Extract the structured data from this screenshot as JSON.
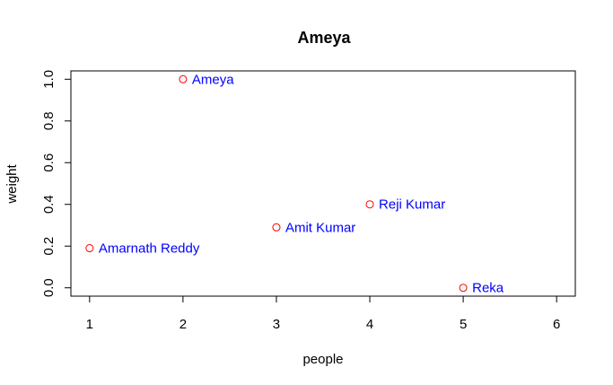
{
  "chart_data": {
    "type": "scatter",
    "title": "Ameya",
    "xlabel": "people",
    "ylabel": "weight",
    "xlim": [
      0.8,
      6.2
    ],
    "ylim": [
      -0.04,
      1.04
    ],
    "x_ticks": [
      1,
      2,
      3,
      4,
      5,
      6
    ],
    "y_ticks": [
      0.0,
      0.2,
      0.4,
      0.6,
      0.8,
      1.0
    ],
    "x_tick_labels": [
      "1",
      "2",
      "3",
      "4",
      "5",
      "6"
    ],
    "y_tick_labels": [
      "0.0",
      "0.2",
      "0.4",
      "0.6",
      "0.8",
      "1.0"
    ],
    "points": [
      {
        "x": 1,
        "y": 0.19,
        "label": "Amarnath Reddy"
      },
      {
        "x": 2,
        "y": 1.0,
        "label": "Ameya"
      },
      {
        "x": 3,
        "y": 0.29,
        "label": "Amit Kumar"
      },
      {
        "x": 4,
        "y": 0.4,
        "label": "Reji Kumar"
      },
      {
        "x": 5,
        "y": 0.0,
        "label": "Reka"
      }
    ],
    "grid": false,
    "legend": "none",
    "colors": {
      "point": "#ff0000",
      "label": "#0000ff",
      "axis": "#000000"
    }
  }
}
